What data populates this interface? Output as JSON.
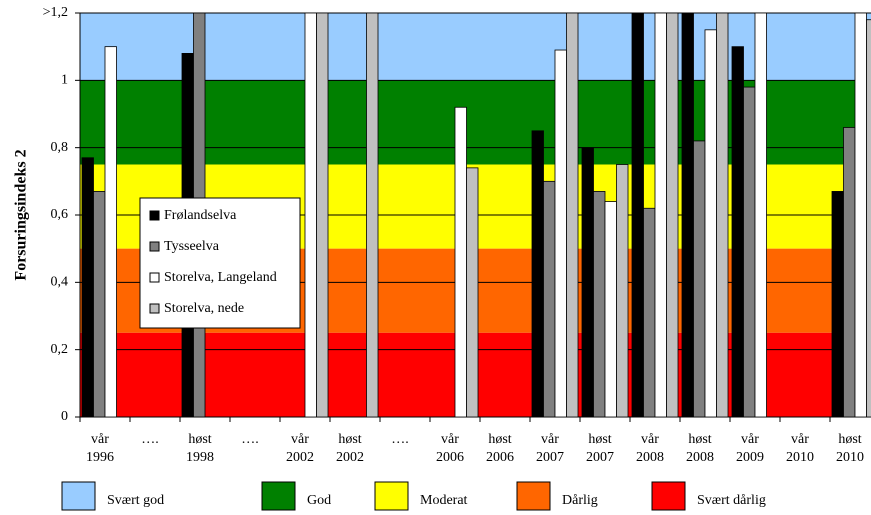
{
  "chart_data": {
    "type": "bar",
    "y_label": "Forsuringsindeks 2",
    "categories": [
      "vår\n1996",
      "….",
      "høst\n1998",
      "….",
      "vår\n2002",
      "høst\n2002",
      "….",
      "vår\n2006",
      "høst\n2006",
      "vår\n2007",
      "høst\n2007",
      "vår\n2008",
      "høst\n2008",
      "vår\n2009",
      "vår\n2010",
      "høst\n2010"
    ],
    "series": [
      {
        "name": "Frølandselva",
        "color": "#000000",
        "values": [
          0.77,
          null,
          1.08,
          null,
          null,
          null,
          null,
          null,
          null,
          0.85,
          0.8,
          1.2,
          1.2,
          1.1,
          null,
          0.67
        ]
      },
      {
        "name": "Tysseelva",
        "color": "#808080",
        "values": [
          0.67,
          null,
          1.2,
          null,
          null,
          null,
          null,
          null,
          null,
          0.7,
          0.67,
          0.62,
          0.82,
          0.98,
          null,
          0.86
        ]
      },
      {
        "name": "Storelva, Langeland",
        "color": "#ffffff",
        "values": [
          1.1,
          null,
          null,
          null,
          1.2,
          null,
          null,
          0.92,
          null,
          1.09,
          0.64,
          1.2,
          1.15,
          1.2,
          null,
          1.2
        ]
      },
      {
        "name": "Storelva, nede",
        "color": "#c0c0c0",
        "values": [
          null,
          null,
          null,
          null,
          1.2,
          1.2,
          null,
          0.74,
          null,
          1.2,
          0.75,
          1.2,
          1.2,
          null,
          null,
          1.18
        ]
      }
    ],
    "zones": [
      {
        "name": "Svært god",
        "from": 1.0,
        "to": 1.2,
        "color": "#99ccff"
      },
      {
        "name": "God",
        "from": 0.75,
        "to": 1.0,
        "color": "#008000"
      },
      {
        "name": "Moderat",
        "from": 0.5,
        "to": 0.75,
        "color": "#ffff00"
      },
      {
        "name": "Dårlig",
        "from": 0.25,
        "to": 0.5,
        "color": "#ff6600"
      },
      {
        "name": "Svært dårlig",
        "from": 0,
        "to": 0.25,
        "color": "#ff0000"
      }
    ],
    "ylim": [
      0,
      1.2
    ],
    "yticks": [
      0,
      {
        "value": 0.2,
        "label": "0,2"
      },
      {
        "value": 0.4,
        "label": "0,4"
      },
      {
        "value": 0.6,
        "label": "0,6"
      },
      {
        "value": 0.8,
        "label": "0,8"
      },
      1,
      {
        "value": 1.2,
        "label": ">1,2"
      }
    ],
    "grid": true
  }
}
